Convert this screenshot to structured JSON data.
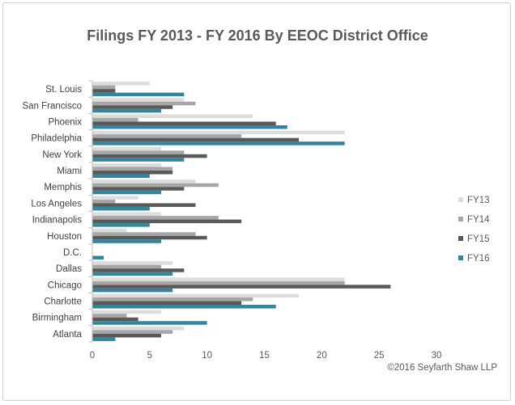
{
  "chart_data": {
    "type": "bar",
    "orientation": "horizontal",
    "title": "Filings FY 2013 - FY 2016 By EEOC District Office",
    "xlabel": "",
    "ylabel": "",
    "xlim": [
      0,
      30
    ],
    "x_ticks": [
      "0",
      "5",
      "10",
      "15",
      "20",
      "25",
      "30"
    ],
    "grid": false,
    "legend_position": "right",
    "credit": "©2016 Seyfarth Shaw LLP",
    "categories": [
      "Atlanta",
      "Birmingham",
      "Charlotte",
      "Chicago",
      "Dallas",
      "D.C.",
      "Houston",
      "Indianapolis",
      "Los Angeles",
      "Memphis",
      "Miami",
      "New York",
      "Philadelphia",
      "Phoenix",
      "San Francisco",
      "St. Louis"
    ],
    "series": [
      {
        "name": "FY13",
        "color": "#dcdcdc",
        "values": [
          8,
          6,
          18,
          22,
          7,
          0,
          3,
          6,
          4,
          9,
          6,
          6,
          22,
          14,
          8,
          5
        ]
      },
      {
        "name": "FY14",
        "color": "#a6a6a6",
        "values": [
          7,
          3,
          14,
          22,
          6,
          0,
          9,
          11,
          2,
          11,
          7,
          8,
          13,
          4,
          9,
          2
        ]
      },
      {
        "name": "FY15",
        "color": "#595959",
        "values": [
          6,
          4,
          13,
          26,
          8,
          0,
          10,
          13,
          9,
          8,
          7,
          10,
          18,
          16,
          7,
          2
        ]
      },
      {
        "name": "FY16",
        "color": "#31859c",
        "values": [
          2,
          10,
          16,
          7,
          7,
          1,
          6,
          5,
          5,
          6,
          5,
          8,
          22,
          17,
          6,
          8
        ]
      }
    ]
  }
}
